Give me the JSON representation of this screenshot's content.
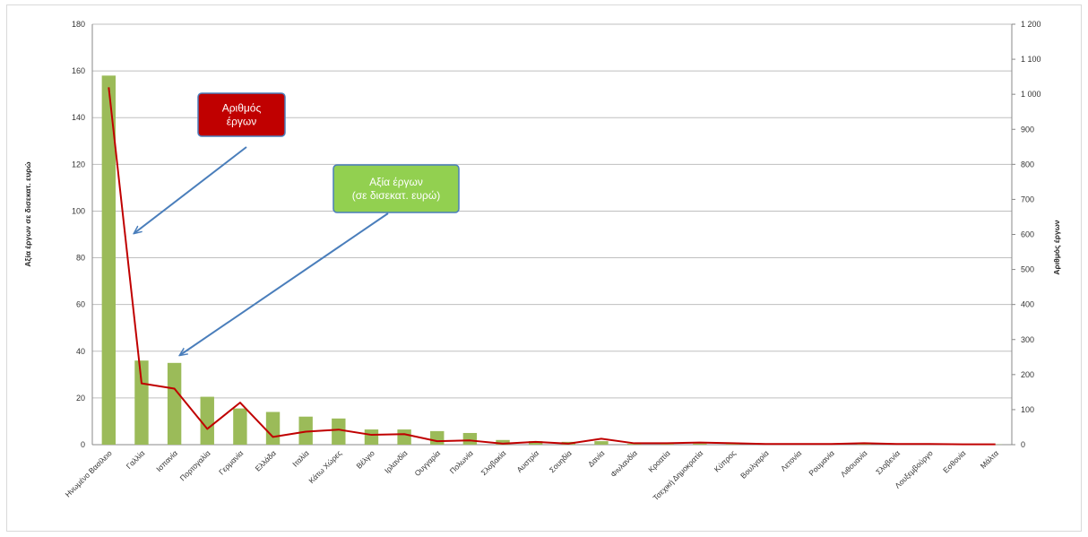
{
  "chart_data": {
    "type": "bar",
    "categories": [
      "Ηνωμένο Βασίλειο",
      "Γαλλία",
      "Ισπανία",
      "Πορτογαλία",
      "Γερμανία",
      "Ελλάδα",
      "Ιταλία",
      "Κάτω Χώρες",
      "Βέλγιο",
      "Ιρλανδία",
      "Ουγγαρία",
      "Πολωνία",
      "Σλοβακία",
      "Αυστρία",
      "Σουηδία",
      "Δανία",
      "Φινλανδία",
      "Κροατία",
      "Τσεχική Δημοκρατία",
      "Κύπρος",
      "Βουλγαρία",
      "Λετονία",
      "Ρουμανία",
      "Λιθουανία",
      "Σλοβενία",
      "Λουξεμβούργο",
      "Εσθονία",
      "Μάλτα"
    ],
    "series": [
      {
        "kind": "bar",
        "axis": "left",
        "color": "#9bbb59",
        "values": [
          158,
          36,
          35,
          20.5,
          15.5,
          14,
          12,
          11.2,
          6.5,
          6.5,
          5.8,
          5,
          2,
          1.5,
          1.2,
          1.5,
          0.4,
          0.3,
          0.5,
          0.3,
          0.2,
          0.2,
          0.2,
          0.3,
          0.2,
          0.2,
          0.1,
          0.1
        ]
      },
      {
        "kind": "line",
        "axis": "right",
        "color": "#c00000",
        "values": [
          1020,
          175,
          160,
          45,
          120,
          22,
          37,
          43,
          28,
          30,
          10,
          12,
          3,
          8,
          3,
          17,
          4,
          4,
          6,
          4,
          2,
          2,
          2,
          4,
          2,
          2,
          1,
          1
        ]
      }
    ],
    "y_left": {
      "label": "Αξία έργων σε δισεκατ. ευρώ",
      "min": 0,
      "max": 180,
      "step": 20,
      "ticks": [
        "0",
        "20",
        "40",
        "60",
        "80",
        "100",
        "120",
        "140",
        "160",
        "180"
      ]
    },
    "y_right": {
      "label": "Αριθμός έργων",
      "min": 0,
      "max": 1200,
      "step": 100,
      "ticks": [
        "0",
        "100",
        "200",
        "300",
        "400",
        "500",
        "600",
        "700",
        "800",
        "900",
        "1 000",
        "1 100",
        "1 200"
      ]
    },
    "grid": true,
    "annotations": [
      {
        "text": [
          "Αριθμός",
          "έργων"
        ],
        "fill": "#c00000",
        "text_color": "#ffffff"
      },
      {
        "text": [
          "Αξία έργων",
          "(σε δισεκατ. ευρώ)"
        ],
        "fill": "#92d050",
        "text_color": "#ffffff"
      }
    ]
  }
}
